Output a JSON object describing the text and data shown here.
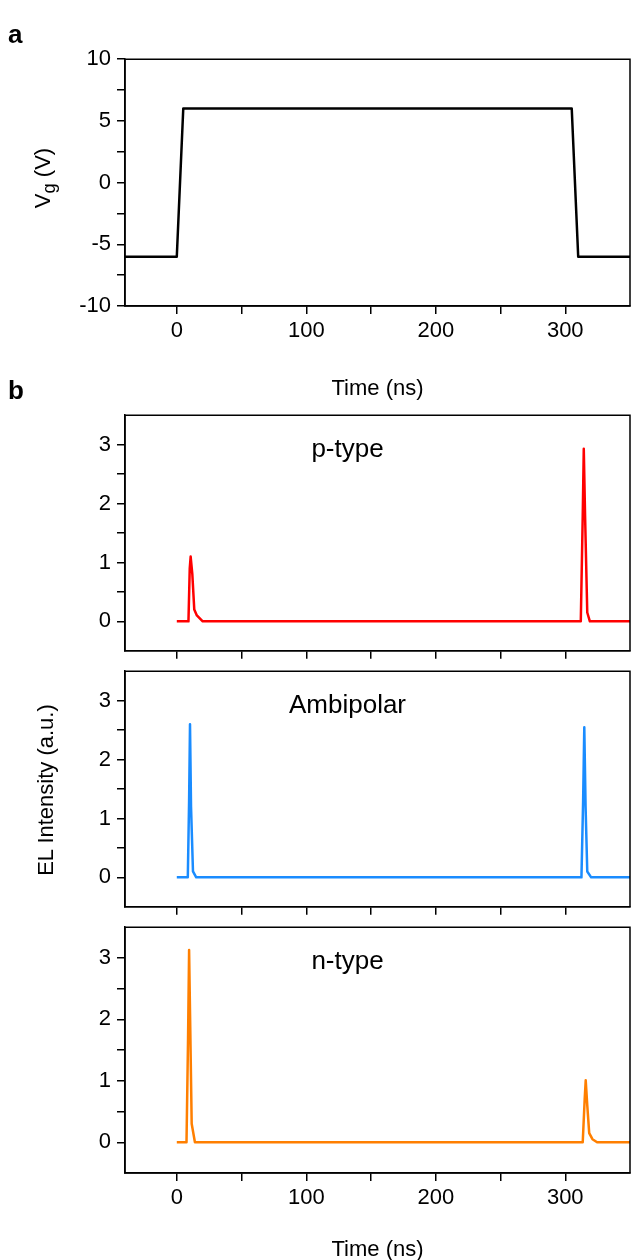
{
  "chart_data": [
    {
      "type": "line",
      "ylabel": "V$_{g}$ (V)",
      "xlabel": "Time (ns)",
      "annotations": [
        "a"
      ],
      "xlim": [
        -40,
        350
      ],
      "ylim": [
        -10,
        10
      ],
      "xticks": [
        0,
        {
          "value": 50,
          "label": null
        },
        100,
        {
          "value": 150,
          "label": null
        },
        200,
        {
          "value": 250,
          "label": null
        },
        300
      ],
      "yticks": [
        -10,
        {
          "value": -7.5,
          "label": null
        },
        -5,
        {
          "value": -2.5,
          "label": null
        },
        0,
        {
          "value": 2.5,
          "label": null
        },
        5,
        {
          "value": 7.5,
          "label": null
        },
        10
      ],
      "x": [
        -40,
        0,
        5,
        305,
        310,
        350
      ],
      "series": [
        {
          "color": "#000000",
          "values": [
            -6,
            -6,
            6,
            6,
            -6,
            -6
          ]
        }
      ],
      "legend": false,
      "grid": false
    },
    {
      "type": "line",
      "annotations": [
        "b"
      ],
      "tick_labels": "y",
      "xlim": [
        -40,
        350
      ],
      "ylim": [
        -0.5,
        3.5
      ],
      "xticks": [
        0,
        {
          "value": 50,
          "label": null
        },
        100,
        {
          "value": 150,
          "label": null
        },
        200,
        {
          "value": 250,
          "label": null
        },
        300
      ],
      "yticks": [
        0,
        {
          "value": 0.5,
          "label": null
        },
        1,
        {
          "value": 1.5,
          "label": null
        },
        2,
        {
          "value": 2.5,
          "label": null
        },
        3
      ],
      "x": [
        0,
        9,
        10,
        10.7,
        12,
        13.5,
        15.5,
        20,
        312,
        313.5,
        314.3,
        315.3,
        317,
        319,
        350
      ],
      "series": [
        {
          "name": "p-type",
          "color": "#ff0000",
          "values": [
            0,
            0,
            0.9,
            1.1,
            0.8,
            0.2,
            0.1,
            0,
            0,
            1.8,
            2.93,
            1.8,
            0.15,
            0,
            0
          ]
        }
      ],
      "legend": false,
      "grid": false
    },
    {
      "type": "line",
      "ylabel": "EL Intensity (a.u.)",
      "tick_labels": "y",
      "xlim": [
        -40,
        350
      ],
      "ylim": [
        -0.5,
        3.5
      ],
      "xticks": [
        0,
        {
          "value": 50,
          "label": null
        },
        100,
        {
          "value": 150,
          "label": null
        },
        200,
        {
          "value": 250,
          "label": null
        },
        300
      ],
      "yticks": [
        0,
        {
          "value": 0.5,
          "label": null
        },
        1,
        {
          "value": 1.5,
          "label": null
        },
        2,
        {
          "value": 2.5,
          "label": null
        },
        3
      ],
      "x": [
        0,
        8.5,
        9.5,
        10.2,
        11,
        12.5,
        15,
        312.5,
        313.8,
        314.7,
        315.7,
        317,
        320,
        350
      ],
      "series": [
        {
          "name": "Ambipolar",
          "color": "#1a8cff",
          "values": [
            0,
            0,
            1.3,
            2.6,
            1.2,
            0.1,
            0,
            0,
            1.3,
            2.55,
            1.2,
            0.1,
            0,
            0
          ]
        }
      ],
      "legend": false,
      "grid": false
    },
    {
      "type": "line",
      "xlabel": "Time (ns)",
      "xlim": [
        -40,
        350
      ],
      "ylim": [
        -0.5,
        3.5
      ],
      "xticks": [
        0,
        {
          "value": 50,
          "label": null
        },
        100,
        {
          "value": 150,
          "label": null
        },
        200,
        {
          "value": 250,
          "label": null
        },
        300
      ],
      "yticks": [
        0,
        {
          "value": 0.5,
          "label": null
        },
        1,
        {
          "value": 1.5,
          "label": null
        },
        2,
        {
          "value": 2.5,
          "label": null
        },
        3
      ],
      "x": [
        0,
        7.5,
        8.7,
        9.5,
        10.3,
        11.5,
        14,
        313.5,
        315,
        315.8,
        317,
        318.5,
        321,
        324.6,
        350
      ],
      "series": [
        {
          "name": "n-type",
          "color": "#ff7f00",
          "values": [
            0,
            0,
            1.7,
            3.13,
            2,
            0.3,
            0,
            0,
            0.7,
            1.01,
            0.6,
            0.15,
            0.05,
            0,
            0
          ]
        }
      ],
      "legend": false,
      "grid": false
    }
  ]
}
